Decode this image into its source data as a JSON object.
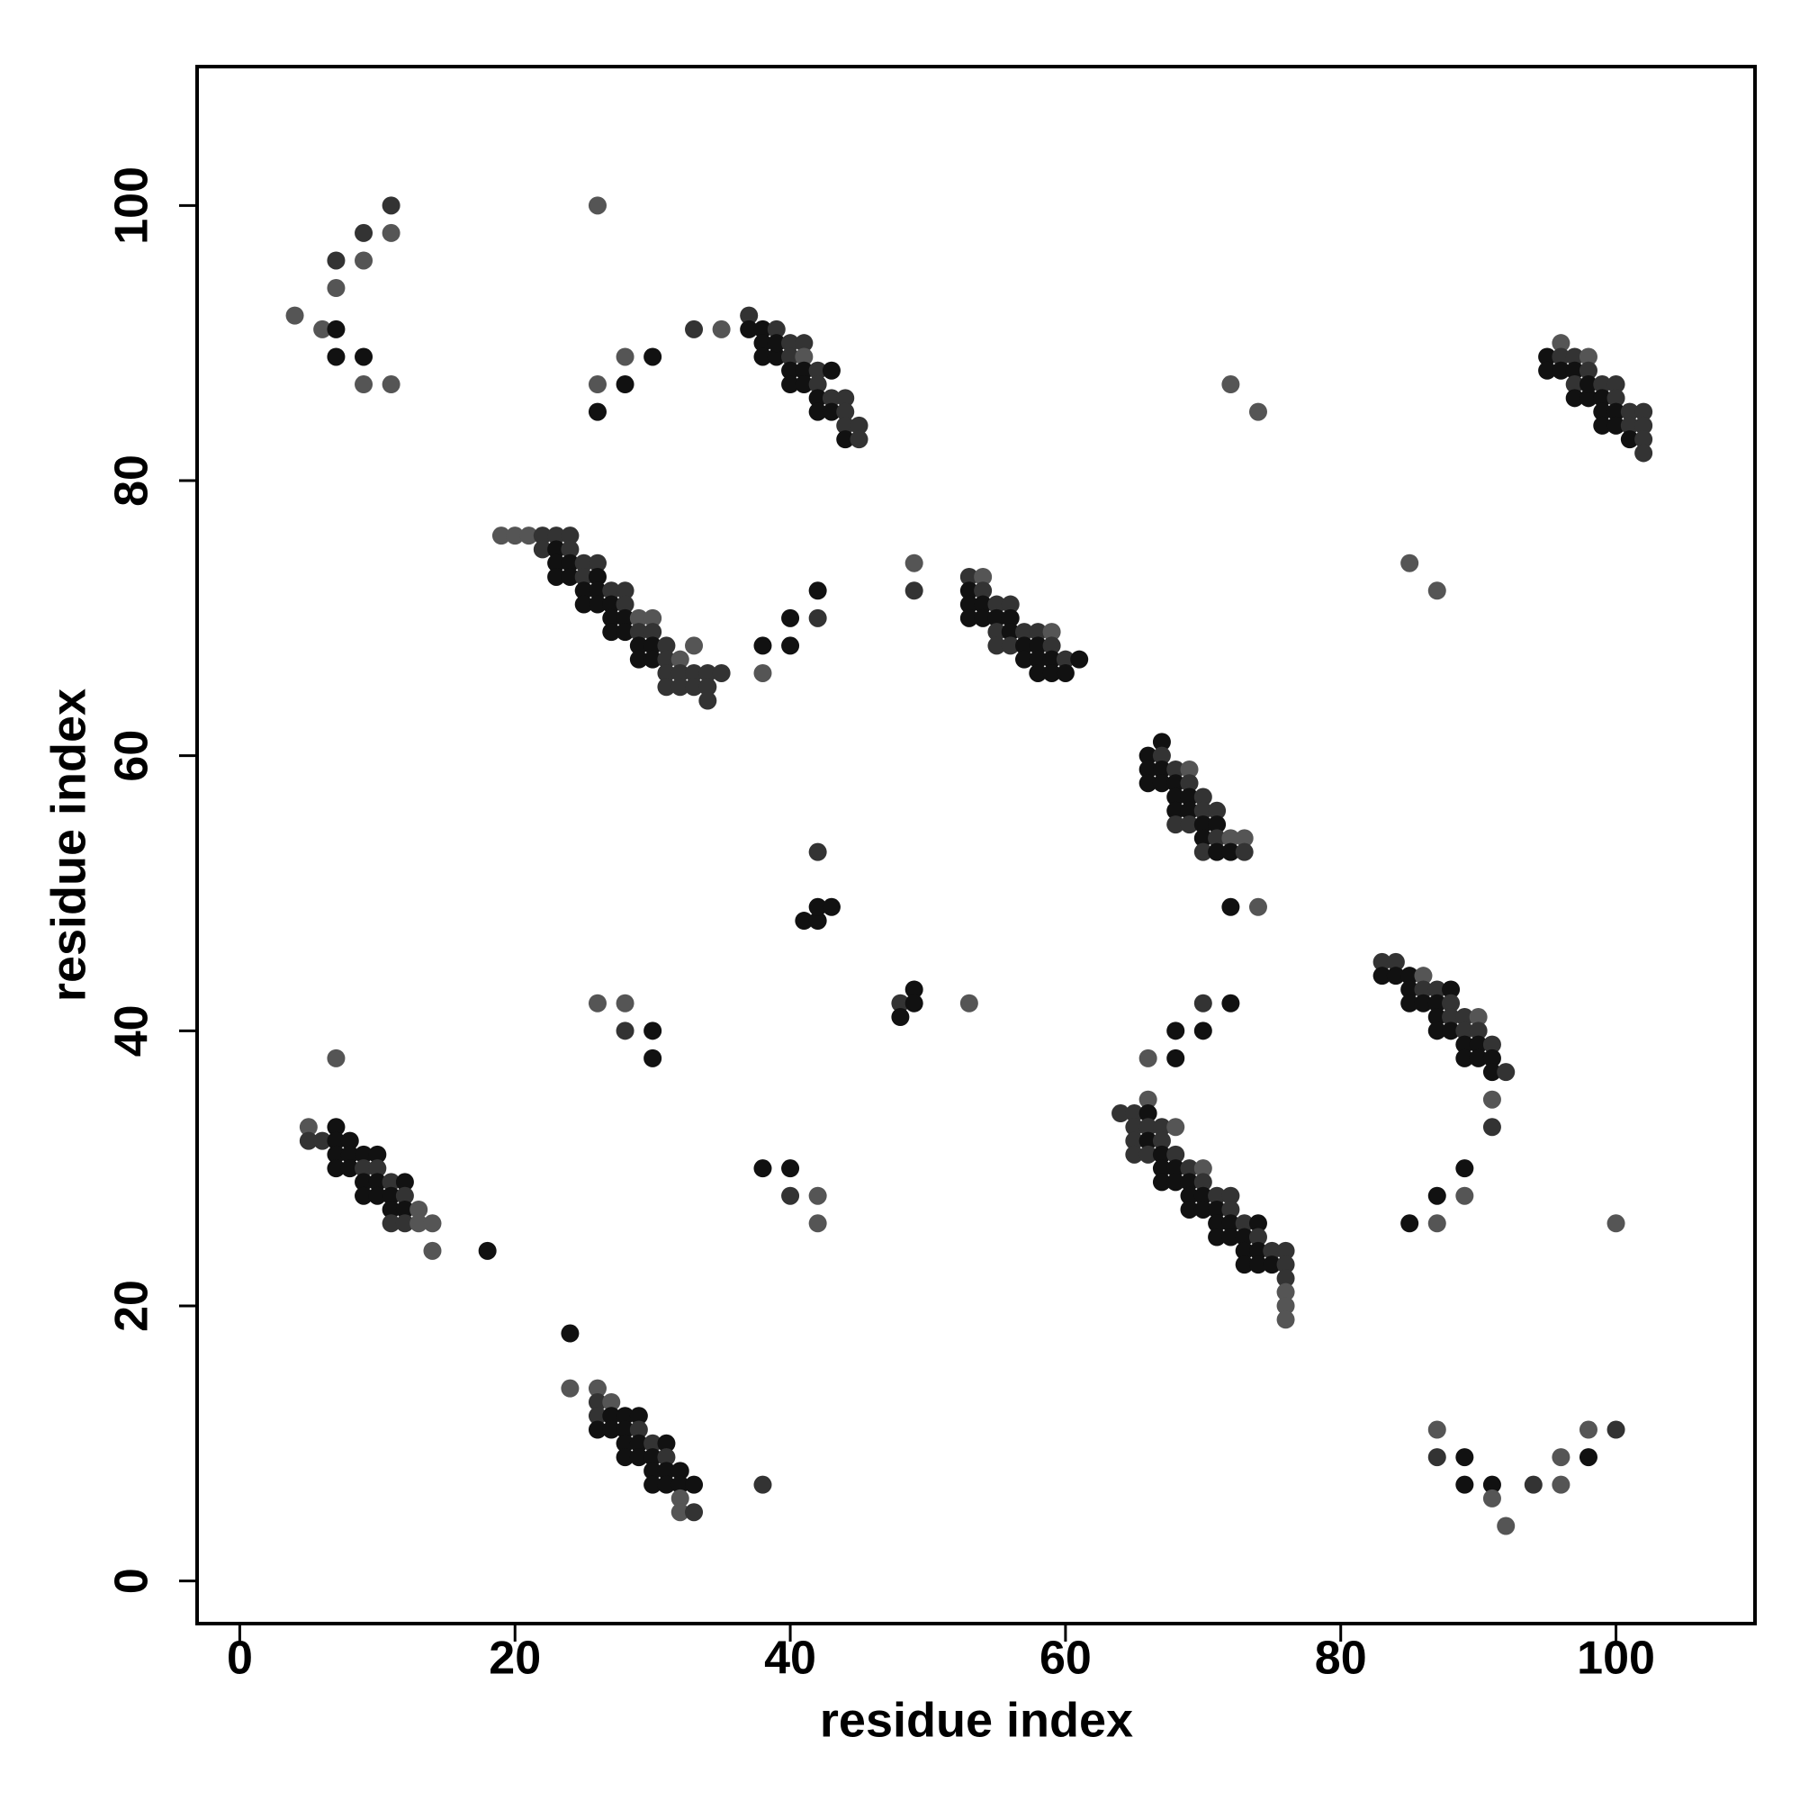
{
  "chart_data": {
    "type": "scatter",
    "xlabel": "residue index",
    "ylabel": "residue index",
    "xlim": [
      -3.1,
      110.1
    ],
    "ylim": [
      -3.1,
      110.1
    ],
    "xticks": [
      0,
      20,
      40,
      60,
      80,
      100
    ],
    "yticks": [
      0,
      20,
      40,
      60,
      80,
      100
    ],
    "x": [
      4,
      6,
      7,
      7,
      9,
      9,
      11,
      7,
      7,
      9,
      9,
      11,
      11,
      26,
      26,
      26,
      28,
      28,
      30,
      33,
      35,
      37,
      37,
      38,
      38,
      39,
      38,
      39,
      39,
      40,
      41,
      40,
      41,
      40,
      41,
      42,
      40,
      41,
      42,
      43,
      42,
      43,
      42,
      43,
      44,
      44,
      44,
      45,
      44,
      45,
      72,
      74,
      95,
      95,
      96,
      96,
      96,
      97,
      97,
      97,
      98,
      98,
      97,
      98,
      98,
      99,
      99,
      99,
      100,
      100,
      99,
      100,
      100,
      101,
      101,
      101,
      102,
      102,
      102,
      102,
      85,
      87,
      19,
      20,
      21,
      22,
      23,
      24,
      22,
      23,
      24,
      23,
      24,
      25,
      26,
      23,
      24,
      25,
      26,
      25,
      26,
      27,
      28,
      25,
      26,
      27,
      28,
      27,
      28,
      29,
      30,
      27,
      28,
      29,
      30,
      29,
      30,
      31,
      29,
      30,
      31,
      32,
      31,
      32,
      33,
      33,
      34,
      35,
      31,
      32,
      33,
      34,
      34,
      38,
      38,
      40,
      40,
      42,
      42,
      49,
      49,
      53,
      54,
      53,
      54,
      53,
      54,
      55,
      56,
      53,
      54,
      55,
      56,
      55,
      56,
      57,
      58,
      59,
      55,
      56,
      57,
      58,
      59,
      57,
      58,
      59,
      60,
      61,
      58,
      59,
      60,
      67,
      66,
      67,
      66,
      67,
      68,
      69,
      66,
      67,
      68,
      69,
      68,
      69,
      70,
      68,
      69,
      70,
      71,
      68,
      69,
      70,
      71,
      70,
      71,
      72,
      73,
      70,
      71,
      72,
      73,
      42,
      41,
      42,
      42,
      43,
      72,
      74,
      48,
      48,
      49,
      49,
      53,
      26,
      28,
      28,
      30,
      30,
      7,
      66,
      68,
      68,
      70,
      70,
      72,
      83,
      84,
      83,
      84,
      85,
      86,
      85,
      86,
      87,
      88,
      85,
      86,
      87,
      88,
      87,
      88,
      89,
      90,
      87,
      88,
      89,
      90,
      89,
      90,
      91,
      89,
      90,
      91,
      91,
      92,
      91,
      91,
      64,
      65,
      66,
      66,
      65,
      66,
      67,
      65,
      66,
      67,
      68,
      65,
      66,
      67,
      68,
      67,
      68,
      69,
      70,
      67,
      68,
      69,
      70,
      69,
      70,
      71,
      72,
      69,
      70,
      71,
      72,
      71,
      72,
      73,
      74,
      71,
      72,
      73,
      74,
      73,
      74,
      75,
      76,
      73,
      74,
      75,
      76,
      76,
      76,
      76,
      76,
      5,
      5,
      6,
      7,
      7,
      8,
      7,
      8,
      9,
      10,
      7,
      8,
      9,
      10,
      9,
      10,
      11,
      12,
      9,
      10,
      11,
      12,
      11,
      12,
      13,
      11,
      12,
      13,
      14,
      14,
      18,
      38,
      40,
      40,
      42,
      42,
      85,
      87,
      87,
      89,
      89,
      100,
      24,
      24,
      26,
      26,
      27,
      26,
      27,
      28,
      29,
      26,
      27,
      28,
      29,
      28,
      29,
      30,
      31,
      28,
      29,
      30,
      31,
      30,
      31,
      32,
      30,
      31,
      32,
      33,
      32,
      32,
      33,
      38,
      87,
      87,
      89,
      89,
      91,
      91,
      92,
      94,
      96,
      96,
      98,
      98,
      100
    ],
    "values": [
      92,
      91,
      91,
      89,
      89,
      87,
      87,
      94,
      96,
      96,
      98,
      98,
      100,
      100,
      87,
      85,
      89,
      87,
      89,
      91,
      91,
      92,
      91,
      91,
      90,
      91,
      89,
      89,
      90,
      90,
      90,
      89,
      89,
      88,
      88,
      88,
      87,
      87,
      87,
      88,
      86,
      86,
      85,
      85,
      86,
      85,
      84,
      84,
      83,
      83,
      87,
      85,
      89,
      88,
      90,
      89,
      88,
      89,
      88,
      87,
      89,
      88,
      86,
      86,
      87,
      87,
      86,
      85,
      87,
      86,
      84,
      85,
      84,
      85,
      84,
      83,
      85,
      84,
      83,
      82,
      74,
      72,
      76,
      76,
      76,
      76,
      76,
      76,
      75,
      75,
      75,
      74,
      74,
      74,
      74,
      73,
      73,
      73,
      73,
      72,
      72,
      72,
      72,
      71,
      71,
      71,
      71,
      70,
      70,
      70,
      70,
      69,
      69,
      69,
      69,
      68,
      68,
      68,
      67,
      67,
      67,
      67,
      66,
      66,
      66,
      68,
      66,
      66,
      65,
      65,
      65,
      65,
      64,
      68,
      66,
      70,
      68,
      72,
      70,
      74,
      72,
      73,
      73,
      72,
      72,
      71,
      71,
      71,
      71,
      70,
      70,
      70,
      70,
      69,
      69,
      69,
      69,
      69,
      68,
      68,
      68,
      68,
      68,
      67,
      67,
      67,
      67,
      67,
      66,
      66,
      66,
      61,
      60,
      60,
      59,
      59,
      59,
      59,
      58,
      58,
      58,
      58,
      57,
      57,
      57,
      56,
      56,
      56,
      56,
      55,
      55,
      55,
      55,
      54,
      54,
      54,
      54,
      53,
      53,
      53,
      53,
      53,
      48,
      48,
      49,
      49,
      49,
      49,
      42,
      41,
      43,
      42,
      42,
      42,
      42,
      40,
      40,
      38,
      38,
      38,
      40,
      38,
      42,
      40,
      42,
      45,
      45,
      44,
      44,
      44,
      44,
      43,
      43,
      43,
      43,
      42,
      42,
      42,
      42,
      41,
      41,
      41,
      41,
      40,
      40,
      40,
      40,
      39,
      39,
      39,
      38,
      38,
      38,
      37,
      37,
      35,
      33,
      34,
      34,
      35,
      34,
      33,
      33,
      33,
      32,
      32,
      32,
      33,
      31,
      31,
      31,
      31,
      30,
      30,
      30,
      30,
      29,
      29,
      29,
      29,
      28,
      28,
      28,
      28,
      27,
      27,
      27,
      27,
      26,
      26,
      26,
      26,
      25,
      25,
      25,
      25,
      24,
      24,
      24,
      24,
      23,
      23,
      23,
      23,
      22,
      21,
      20,
      19,
      33,
      32,
      32,
      33,
      32,
      32,
      31,
      31,
      31,
      31,
      30,
      30,
      30,
      30,
      29,
      29,
      29,
      29,
      28,
      28,
      28,
      28,
      27,
      27,
      27,
      26,
      26,
      26,
      26,
      24,
      24,
      30,
      30,
      28,
      28,
      26,
      26,
      28,
      26,
      30,
      28,
      26,
      18,
      14,
      14,
      13,
      13,
      12,
      12,
      12,
      12,
      11,
      11,
      11,
      11,
      10,
      10,
      10,
      10,
      9,
      9,
      9,
      9,
      8,
      8,
      8,
      7,
      7,
      7,
      7,
      6,
      5,
      5,
      7,
      11,
      9,
      9,
      7,
      7,
      6,
      4,
      7,
      9,
      7,
      11,
      9,
      11
    ],
    "colors": [
      "#555",
      "#555",
      "#111",
      "#111",
      "#111",
      "#555",
      "#555",
      "#555",
      "#333",
      "#555",
      "#333",
      "#555",
      "#333",
      "#555",
      "#555",
      "#111",
      "#555",
      "#111",
      "#111",
      "#333",
      "#555",
      "#333",
      "#111",
      "#111",
      "#111",
      "#333",
      "#111",
      "#111",
      "#111",
      "#333",
      "#333",
      "#333",
      "#555",
      "#111",
      "#111",
      "#333",
      "#111",
      "#111",
      "#333",
      "#111",
      "#111",
      "#333",
      "#111",
      "#111",
      "#333",
      "#333",
      "#333",
      "#333",
      "#111",
      "#333",
      "#555",
      "#555",
      "#111",
      "#111",
      "#555",
      "#333",
      "#111",
      "#333",
      "#111",
      "#333",
      "#555",
      "#333",
      "#111",
      "#111",
      "#111",
      "#333",
      "#111",
      "#111",
      "#333",
      "#333",
      "#111",
      "#111",
      "#111",
      "#333",
      "#333",
      "#111",
      "#333",
      "#333",
      "#333",
      "#333",
      "#555",
      "#555",
      "#555",
      "#555",
      "#555",
      "#333",
      "#333",
      "#333",
      "#333",
      "#111",
      "#333",
      "#111",
      "#111",
      "#333",
      "#333",
      "#111",
      "#111",
      "#333",
      "#111",
      "#111",
      "#111",
      "#333",
      "#333",
      "#111",
      "#111",
      "#111",
      "#333",
      "#111",
      "#111",
      "#555",
      "#555",
      "#111",
      "#111",
      "#333",
      "#333",
      "#111",
      "#111",
      "#333",
      "#111",
      "#111",
      "#333",
      "#555",
      "#333",
      "#333",
      "#333",
      "#555",
      "#333",
      "#333",
      "#333",
      "#333",
      "#333",
      "#333",
      "#333",
      "#111",
      "#555",
      "#111",
      "#111",
      "#111",
      "#333",
      "#555",
      "#333",
      "#333",
      "#555",
      "#111",
      "#333",
      "#111",
      "#111",
      "#333",
      "#333",
      "#111",
      "#111",
      "#111",
      "#111",
      "#333",
      "#111",
      "#333",
      "#333",
      "#555",
      "#333",
      "#333",
      "#111",
      "#111",
      "#333",
      "#111",
      "#111",
      "#111",
      "#333",
      "#111",
      "#111",
      "#111",
      "#111",
      "#111",
      "#111",
      "#333",
      "#111",
      "#111",
      "#333",
      "#555",
      "#111",
      "#111",
      "#111",
      "#333",
      "#111",
      "#111",
      "#333",
      "#111",
      "#111",
      "#333",
      "#333",
      "#333",
      "#333",
      "#111",
      "#111",
      "#111",
      "#333",
      "#555",
      "#555",
      "#333",
      "#111",
      "#111",
      "#333",
      "#333",
      "#111",
      "#111",
      "#111",
      "#111",
      "#111",
      "#555",
      "#333",
      "#111",
      "#111",
      "#111",
      "#555",
      "#555",
      "#555",
      "#333",
      "#111",
      "#111",
      "#555",
      "#555",
      "#111",
      "#111",
      "#333",
      "#111",
      "#111",
      "#333",
      "#333",
      "#111",
      "#111",
      "#111",
      "#555",
      "#111",
      "#333",
      "#333",
      "#111",
      "#111",
      "#111",
      "#111",
      "#333",
      "#111",
      "#333",
      "#333",
      "#555",
      "#111",
      "#111",
      "#333",
      "#333",
      "#111",
      "#111",
      "#333",
      "#111",
      "#111",
      "#111",
      "#111",
      "#333",
      "#555",
      "#333",
      "#333",
      "#333",
      "#555",
      "#111",
      "#333",
      "#333",
      "#333",
      "#333",
      "#111",
      "#333",
      "#555",
      "#333",
      "#333",
      "#111",
      "#333",
      "#111",
      "#111",
      "#333",
      "#555",
      "#111",
      "#111",
      "#111",
      "#333",
      "#111",
      "#111",
      "#333",
      "#333",
      "#111",
      "#111",
      "#111",
      "#333",
      "#111",
      "#111",
      "#333",
      "#111",
      "#111",
      "#111",
      "#111",
      "#333",
      "#111",
      "#111",
      "#333",
      "#333",
      "#111",
      "#111",
      "#111",
      "#333",
      "#333",
      "#555",
      "#555",
      "#555",
      "#555",
      "#333",
      "#333",
      "#111",
      "#111",
      "#111",
      "#111",
      "#111",
      "#111",
      "#111",
      "#111",
      "#111",
      "#333",
      "#333",
      "#111",
      "#111",
      "#333",
      "#111",
      "#111",
      "#111",
      "#111",
      "#333",
      "#111",
      "#111",
      "#555",
      "#333",
      "#333",
      "#555",
      "#555",
      "#555",
      "#111",
      "#111",
      "#111",
      "#333",
      "#555",
      "#555",
      "#111",
      "#111",
      "#555",
      "#111",
      "#555",
      "#555",
      "#111",
      "#555",
      "#555",
      "#333",
      "#555",
      "#333",
      "#111",
      "#111",
      "#111",
      "#111",
      "#111",
      "#111",
      "#333",
      "#111",
      "#111",
      "#333",
      "#111",
      "#111",
      "#111",
      "#111",
      "#333",
      "#111",
      "#111",
      "#111",
      "#111",
      "#111",
      "#111",
      "#111",
      "#555",
      "#555",
      "#333",
      "#333",
      "#555",
      "#333",
      "#111",
      "#111",
      "#111",
      "#555",
      "#555",
      "#333",
      "#555",
      "#555",
      "#555",
      "#111",
      "#333"
    ]
  }
}
